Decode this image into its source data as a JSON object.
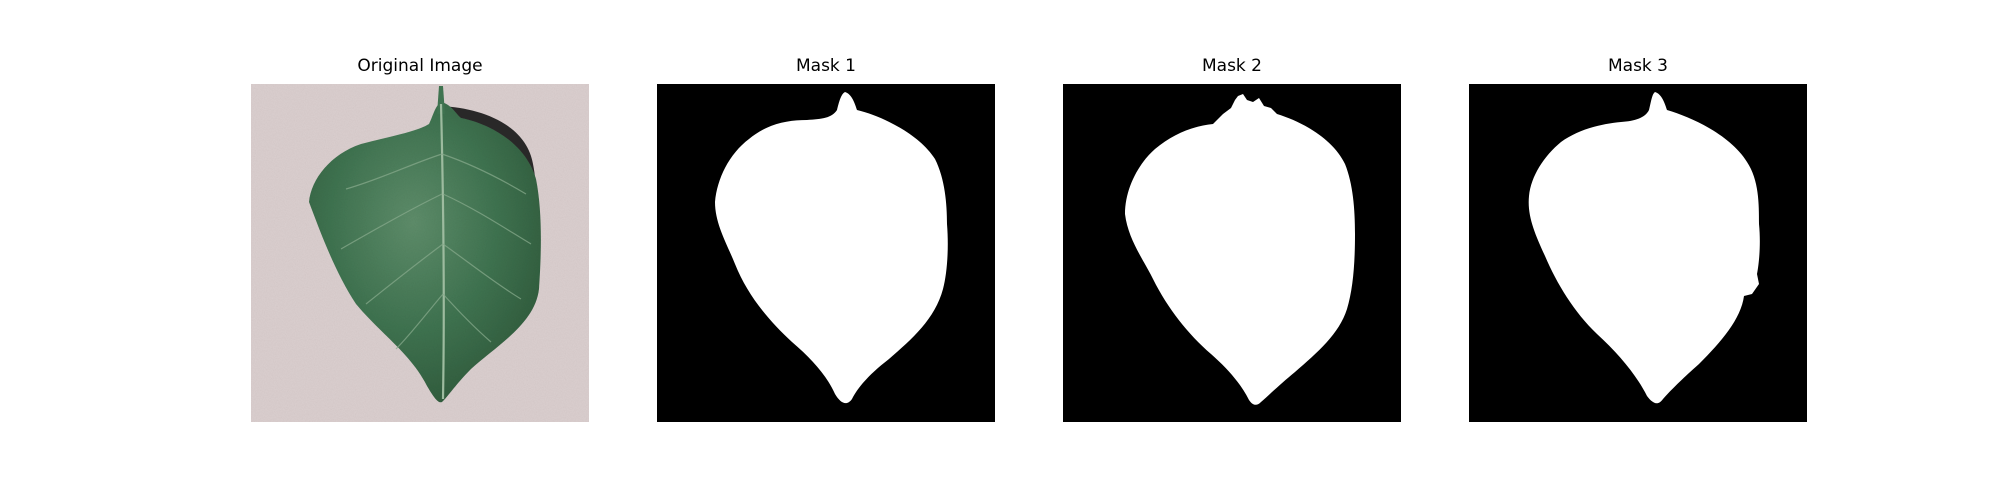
{
  "figure": {
    "panels": [
      {
        "title": "Original Image",
        "kind": "photo"
      },
      {
        "title": "Mask 1",
        "kind": "mask"
      },
      {
        "title": "Mask 2",
        "kind": "mask"
      },
      {
        "title": "Mask 3",
        "kind": "mask"
      }
    ]
  },
  "colors": {
    "background": "#ffffff",
    "photo_background": "#dbcfcf",
    "leaf_dark": "#2f5a3b",
    "leaf_mid": "#3f7350",
    "leaf_light": "#5e8d6a",
    "leaf_vein": "#9dbb9f",
    "shadow": "#161616",
    "mask_background": "#000000",
    "mask_foreground": "#ffffff"
  }
}
